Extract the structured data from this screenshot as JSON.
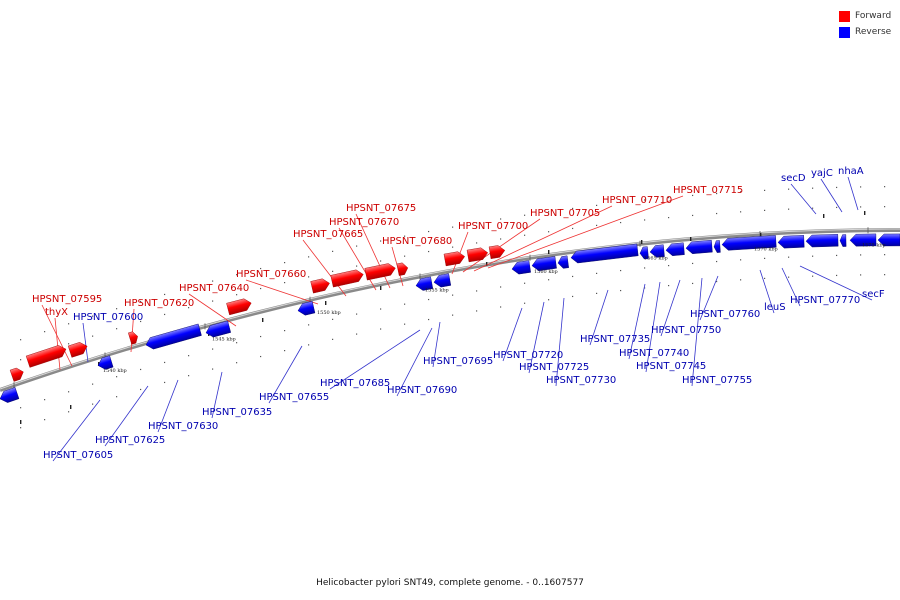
{
  "legend": {
    "forward_label": "Forward",
    "reverse_label": "Reverse",
    "forward_color": "#ff0000",
    "reverse_color": "#0000ff"
  },
  "caption": "Helicobacter pylori SNT49, complete genome. - 0..1607577",
  "scale_labels": [
    "1540 kbp",
    "1545 kbp",
    "1550 kbp",
    "1555 kbp",
    "1560 kbp",
    "1565 kbp",
    "1570 kbp",
    "1575 kbp"
  ],
  "forward_genes": [
    "HPSNT_07595",
    "thyX",
    "HPSNT_07620",
    "HPSNT_07640",
    "HPSNT_07660",
    "HPSNT_07665",
    "HPSNT_07670",
    "HPSNT_07675",
    "HPSNT_07680",
    "HPSNT_07700",
    "HPSNT_07705",
    "HPSNT_07710",
    "HPSNT_07715"
  ],
  "reverse_genes": [
    "HPSNT_07600",
    "HPSNT_07605",
    "HPSNT_07625",
    "HPSNT_07630",
    "HPSNT_07635",
    "HPSNT_07655",
    "HPSNT_07685",
    "HPSNT_07690",
    "HPSNT_07695",
    "HPSNT_07720",
    "HPSNT_07725",
    "HPSNT_07730",
    "HPSNT_07735",
    "HPSNT_07740",
    "HPSNT_07745",
    "HPSNT_07750",
    "HPSNT_07755",
    "HPSNT_07760",
    "leuS",
    "HPSNT_07770",
    "secF",
    "secD",
    "yajC",
    "nhaA"
  ]
}
